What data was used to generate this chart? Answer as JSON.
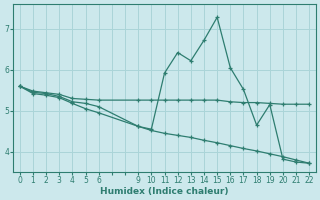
{
  "xlabel": "Humidex (Indice chaleur)",
  "bg_color": "#cce8ec",
  "grid_color": "#aad4d8",
  "line_color": "#2e7d70",
  "x_all": [
    0,
    1,
    2,
    3,
    4,
    5,
    6,
    7,
    8,
    9,
    10,
    11,
    12,
    13,
    14,
    15,
    16,
    17,
    18,
    19,
    20,
    21,
    22
  ],
  "x_labels": [
    0,
    1,
    2,
    3,
    4,
    5,
    6,
    "",
    "",
    9,
    10,
    11,
    12,
    13,
    14,
    15,
    16,
    17,
    18,
    19,
    20,
    21,
    22
  ],
  "series": [
    {
      "x": [
        0,
        1,
        2,
        3,
        4,
        5,
        6,
        9,
        10,
        11,
        12,
        13,
        14,
        15,
        16,
        17,
        18,
        19,
        20,
        21,
        22
      ],
      "y": [
        5.6,
        5.48,
        5.44,
        5.4,
        5.3,
        5.28,
        5.26,
        5.26,
        5.26,
        5.26,
        5.26,
        5.26,
        5.26,
        5.26,
        5.22,
        5.2,
        5.2,
        5.18,
        5.16,
        5.16,
        5.16
      ]
    },
    {
      "x": [
        0,
        1,
        2,
        3,
        4,
        5,
        6,
        9,
        10,
        11,
        12,
        13,
        14,
        15,
        16,
        17,
        18,
        19,
        20,
        21,
        22
      ],
      "y": [
        5.6,
        5.45,
        5.42,
        5.35,
        5.22,
        5.18,
        5.1,
        4.62,
        4.55,
        5.92,
        6.42,
        6.22,
        6.72,
        7.28,
        6.05,
        5.52,
        4.65,
        5.15,
        3.82,
        3.75,
        3.72
      ]
    },
    {
      "x": [
        0,
        1,
        2,
        3,
        4,
        5,
        6,
        9,
        10,
        11,
        12,
        13,
        14,
        15,
        16,
        17,
        18,
        19,
        20,
        21,
        22
      ],
      "y": [
        5.6,
        5.42,
        5.38,
        5.32,
        5.18,
        5.05,
        4.95,
        4.62,
        4.52,
        4.45,
        4.4,
        4.35,
        4.28,
        4.22,
        4.15,
        4.08,
        4.02,
        3.95,
        3.88,
        3.8,
        3.72
      ]
    }
  ],
  "ylim": [
    3.5,
    7.6
  ],
  "yticks": [
    4,
    5,
    6,
    7
  ],
  "xlim": [
    -0.5,
    22.5
  ],
  "tick_fontsize": 5.5,
  "label_fontsize": 6.5
}
